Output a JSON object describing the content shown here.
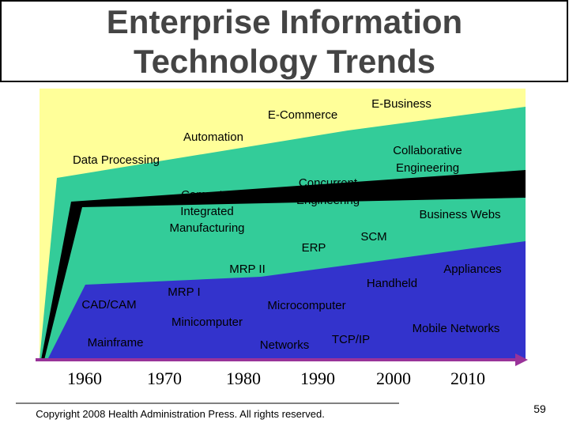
{
  "header": {
    "title_lines": [
      "Enterprise Information",
      "Technology Trends"
    ]
  },
  "diagram": {
    "labels": [
      "E-Commerce",
      "E-Business",
      "Automation",
      "Data Processing",
      "Collaborative",
      "Engineering",
      "Concurrent",
      "Engineering",
      "Computer",
      "Integrated",
      "Manufacturing",
      "Business Webs",
      "ERP",
      "SCM",
      "MRP II",
      "Appliances",
      "Handheld",
      "MRP I",
      "CAD/CAM",
      "Microcomputer",
      "Minicomputer",
      "Mobile Networks",
      "Mainframe",
      "Networks",
      "TCP/IP"
    ],
    "years": [
      "1960",
      "1970",
      "1980",
      "1990",
      "2000",
      "2010"
    ]
  },
  "footer": {
    "copyright": "Copyright 2008 Health Administration Press. All rights reserved.",
    "page_number": "59"
  }
}
